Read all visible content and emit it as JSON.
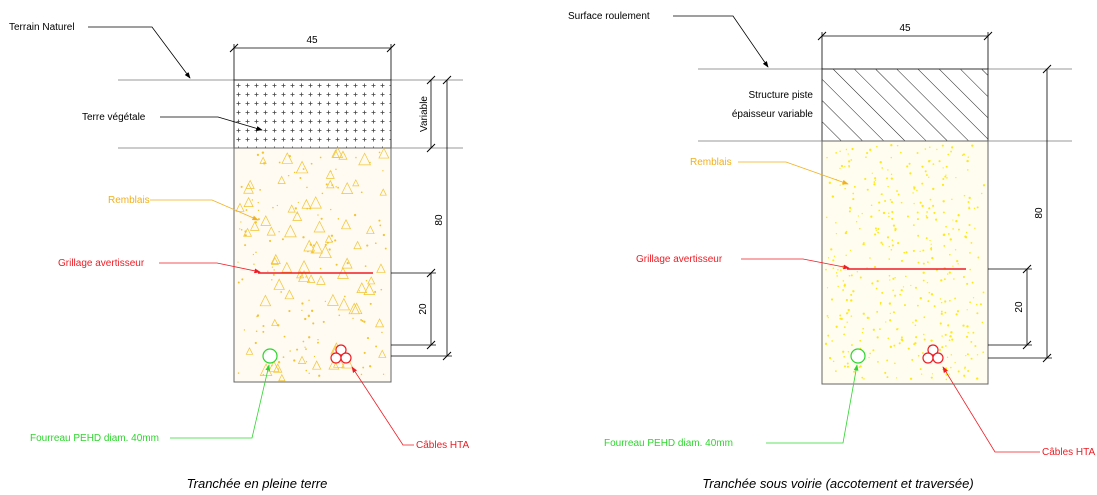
{
  "colors": {
    "line": "#000000",
    "frame": "#7f7f7f",
    "fill_aggregate": "#f2c530",
    "fill_aggregate_dense": "#ffe81a",
    "label_yellow": "#f2b01e",
    "label_red": "#ee1c24",
    "label_green": "#2dd62d",
    "text": "#000000"
  },
  "left": {
    "ground_label": "Terrain Naturel",
    "top_layer_label": "Terre végétale",
    "fill_label": "Remblais",
    "mesh_label": "Grillage avertisseur",
    "conduit_label": "Fourreau PEHD diam. 40mm",
    "cable_label": "Câbles HTA",
    "dim_width": "45",
    "dim_variable": "Variable",
    "dim_depth": "80",
    "dim_mesh": "20",
    "caption": "Tranchée en pleine terre"
  },
  "right": {
    "ground_label": "Surface roulement",
    "structure_label_1": "Structure piste",
    "structure_label_2": "épaisseur variable",
    "fill_label": "Remblais",
    "mesh_label": "Grillage avertisseur",
    "conduit_label": "Fourreau PEHD diam. 40mm",
    "cable_label": "Câbles HTA",
    "dim_width": "45",
    "dim_depth": "80",
    "dim_mesh": "20",
    "caption": "Tranchée sous voirie (accotement et traversée)"
  }
}
